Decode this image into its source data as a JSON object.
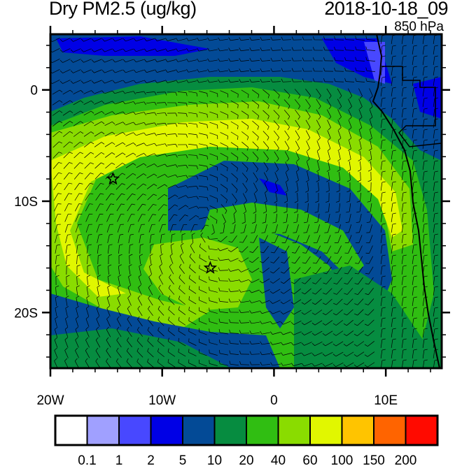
{
  "title_left": "Dry PM2.5 (ug/kg)",
  "title_right": "2018-10-18_09",
  "level": "850 hPa",
  "map": {
    "lon_range": [
      -20,
      15
    ],
    "lat_range": [
      -25,
      5
    ],
    "x_ticks": [
      {
        "value": -20,
        "label": "20W"
      },
      {
        "value": -10,
        "label": "10W"
      },
      {
        "value": 0,
        "label": "0"
      },
      {
        "value": 10,
        "label": "10E"
      }
    ],
    "y_ticks": [
      {
        "value": 0,
        "label": "0"
      },
      {
        "value": -10,
        "label": "10S"
      },
      {
        "value": -20,
        "label": "20S"
      }
    ],
    "markers": [
      {
        "type": "star",
        "lon": -14.4,
        "lat": -8
      },
      {
        "type": "star",
        "lon": -5.7,
        "lat": -16
      }
    ],
    "overlay": "wind barbs"
  },
  "colorbar": {
    "colors": [
      "#ffffff",
      "#a0a0ff",
      "#4848ff",
      "#0000e6",
      "#034a96",
      "#068c40",
      "#30be12",
      "#8adc00",
      "#e1f700",
      "#ffc400",
      "#ff6400",
      "#ff0a00"
    ],
    "labels": [
      "0.1",
      "1",
      "2",
      "5",
      "10",
      "20",
      "40",
      "60",
      "100",
      "150",
      "200"
    ]
  }
}
